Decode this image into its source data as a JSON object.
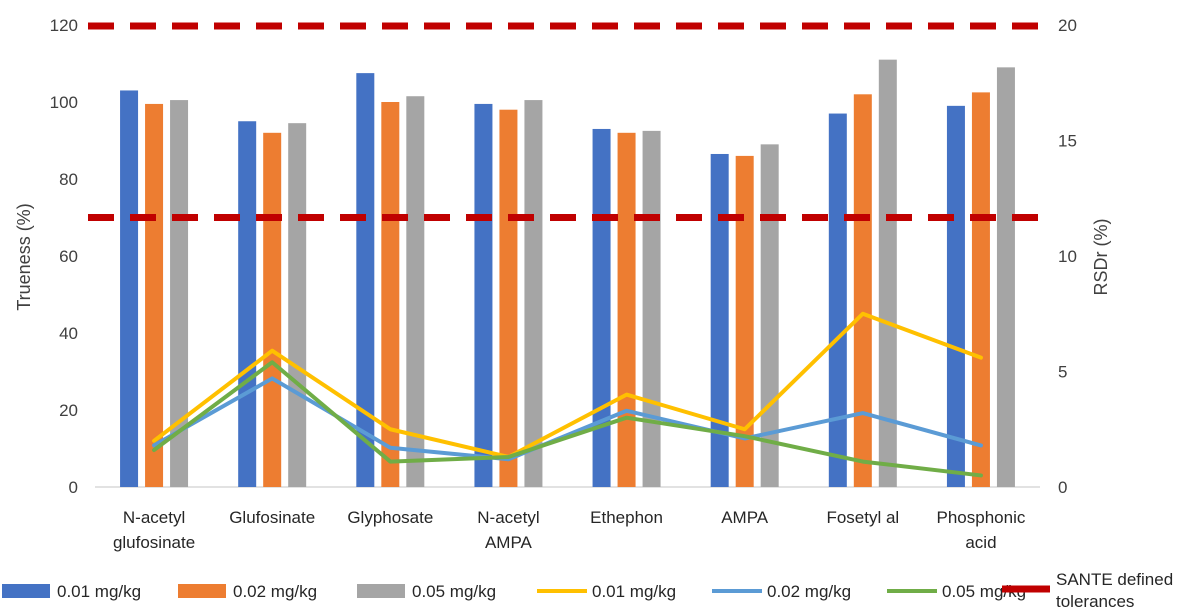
{
  "chart_data": {
    "type": "bar",
    "categories": [
      [
        "N-acetyl",
        "glufosinate"
      ],
      [
        "Glufosinate"
      ],
      [
        "Glyphosate"
      ],
      [
        "N-acetyl",
        "AMPA"
      ],
      [
        "Ethephon"
      ],
      [
        "AMPA"
      ],
      [
        "Fosetyl al"
      ],
      [
        "Phosphonic",
        "acid"
      ]
    ],
    "ylabel": "Trueness (%)",
    "y2label": "RSDr (%)",
    "ylim": [
      0,
      120
    ],
    "y2lim": [
      0,
      20
    ],
    "yticks": [
      "0",
      "20",
      "40",
      "60",
      "80",
      "100",
      "120"
    ],
    "y2ticks": [
      "0",
      "5",
      "10",
      "15",
      "20"
    ],
    "grid": false,
    "legend_position": "bottom",
    "bar_series": [
      {
        "name": "0.01 mg/kg",
        "color": "#4472C4",
        "values": [
          103,
          95,
          107.5,
          99.5,
          93,
          86.5,
          97,
          99
        ]
      },
      {
        "name": "0.02 mg/kg",
        "color": "#ED7D31",
        "values": [
          99.5,
          92,
          100,
          98,
          92,
          86,
          102,
          102.5
        ]
      },
      {
        "name": "0.05 mg/kg",
        "color": "#A5A5A5",
        "values": [
          100.5,
          94.5,
          101.5,
          100.5,
          92.5,
          89,
          111,
          109
        ]
      }
    ],
    "line_series": [
      {
        "name": "0.01 mg/kg",
        "color": "#FFC000",
        "axis": "right",
        "values": [
          2,
          5.9,
          2.5,
          1.3,
          4,
          2.5,
          7.5,
          5.6
        ]
      },
      {
        "name": "0.02 mg/kg",
        "color": "#5B9BD5",
        "axis": "right",
        "values": [
          1.8,
          4.7,
          1.7,
          1.2,
          3.3,
          2.1,
          3.2,
          1.8
        ]
      },
      {
        "name": "0.05 mg/kg",
        "color": "#70AD47",
        "axis": "right",
        "values": [
          1.6,
          5.4,
          1.1,
          1.3,
          3.0,
          2.2,
          1.1,
          0.5
        ]
      }
    ],
    "tolerance_lines": {
      "name": "SANTE defined tolerances",
      "color": "#C00000",
      "values": [
        70,
        120
      ],
      "axis": "left"
    }
  }
}
